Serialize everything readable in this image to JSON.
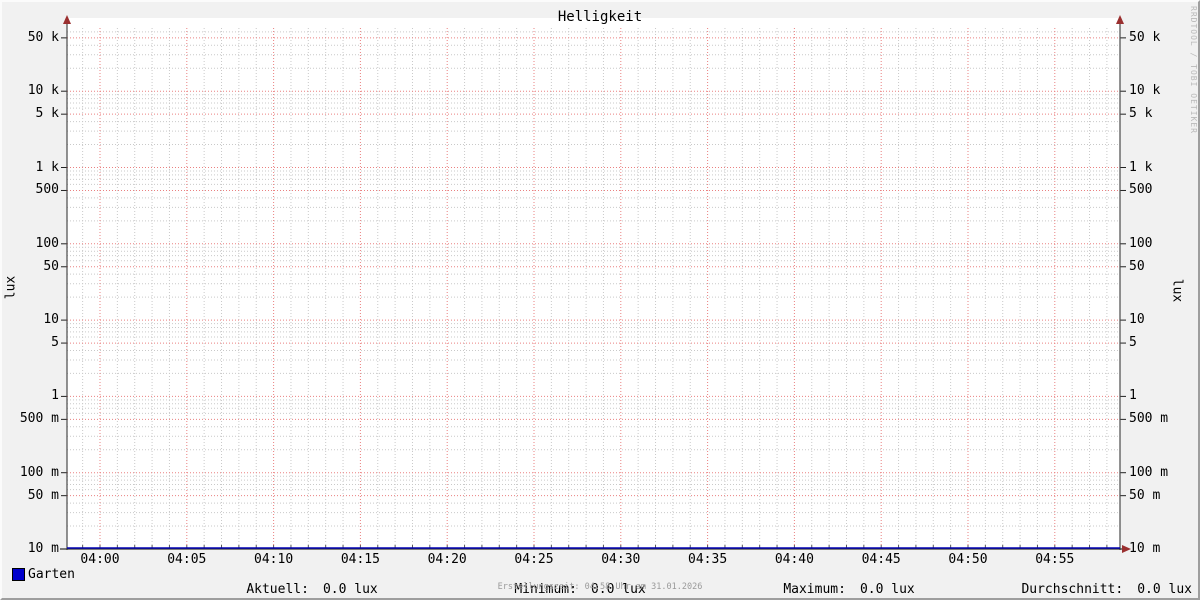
{
  "title": "Helligkeit",
  "watermark": "RRDTOOL / TOBI OETIKER",
  "axis": {
    "unit_left": "lux",
    "unit_right": "lux"
  },
  "legend": {
    "series_label": "Garten",
    "series_color": "#0000cc",
    "stats": [
      {
        "label": "Aktuell:",
        "value": "0.0 lux"
      },
      {
        "label": "Minimum:",
        "value": "0.0 lux"
      },
      {
        "label": "Maximum:",
        "value": "0.0 lux"
      },
      {
        "label": "Durchschnitt:",
        "value": "0.0 lux"
      }
    ]
  },
  "footer": {
    "creation_text": "Erstellungszeit: 04:58 Uhr am 31.01.2026"
  },
  "colors": {
    "background": "#f1f1f1",
    "canvas": "#ffffff",
    "grid_minor": "#c9c9c9",
    "grid_major": "#ea8080",
    "axis": "#4a4a4a",
    "arrow": "#9a2f2f",
    "series_line": "#0000b3",
    "watermark_text": "#b9b9b9"
  },
  "chart_data": {
    "type": "line",
    "title": "Helligkeit",
    "ylabel": "lux",
    "ylabel_right": "lux",
    "y_scale": "logarithmic",
    "ylim": [
      0.01,
      58000
    ],
    "x_visible_range": [
      "03:58",
      "04:59"
    ],
    "x_tick_labels": [
      "04:00",
      "04:05",
      "04:10",
      "04:15",
      "04:20",
      "04:25",
      "04:30",
      "04:35",
      "04:40",
      "04:45",
      "04:50",
      "04:55"
    ],
    "y_tick_labels": [
      "50 k",
      "10 k",
      "5 k",
      "1 k",
      "500",
      "100",
      "50",
      "10",
      "5",
      "1",
      "500 m",
      "100 m",
      "50 m",
      "10 m"
    ],
    "y_tick_values": [
      50000,
      10000,
      5000,
      1000,
      500,
      100,
      50,
      10,
      5,
      1,
      0.5,
      0.1,
      0.05,
      0.01
    ],
    "grid": "dotted; minor gray every 1 min / log sub-decade, major red every 5 min and at 1,5 per decade",
    "legend_position": "bottom",
    "series": [
      {
        "name": "Garten",
        "color": "#0000cc",
        "x": [
          "04:00",
          "04:05",
          "04:10",
          "04:15",
          "04:20",
          "04:25",
          "04:30",
          "04:35",
          "04:40",
          "04:45",
          "04:50",
          "04:55"
        ],
        "values": [
          0.0,
          0.0,
          0.0,
          0.0,
          0.0,
          0.0,
          0.0,
          0.0,
          0.0,
          0.0,
          0.0,
          0.0
        ]
      }
    ],
    "stats": {
      "aktuell": 0.0,
      "minimum": 0.0,
      "maximum": 0.0,
      "durchschnitt": 0.0,
      "unit": "lux"
    }
  }
}
